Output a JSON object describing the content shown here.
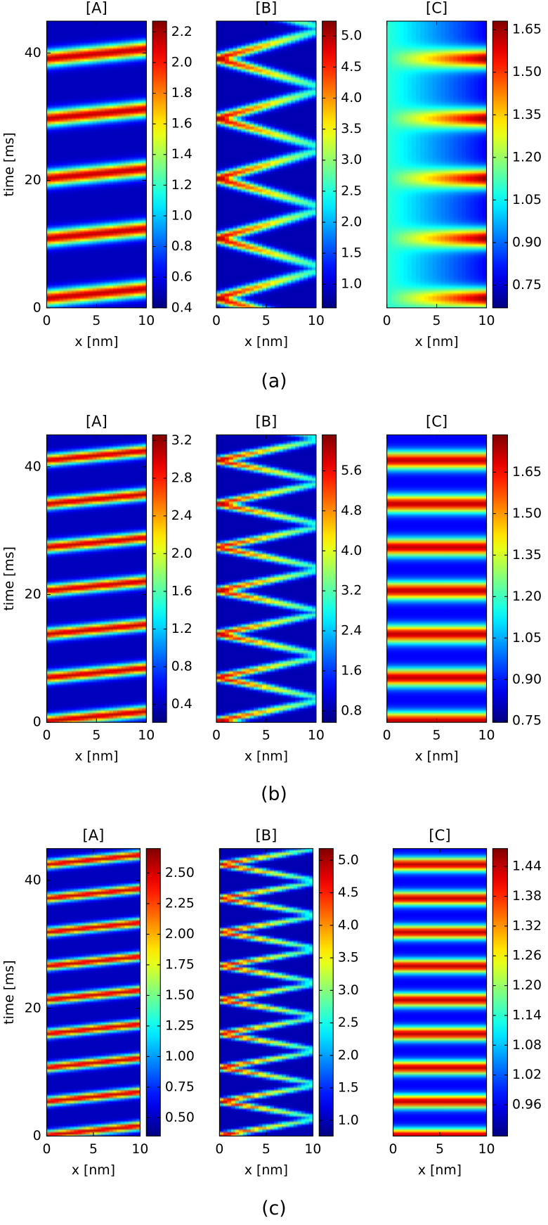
{
  "captions": [
    "(a)",
    "(b)",
    "(c)"
  ],
  "chart_data": [
    {
      "type": "heatmap",
      "title": "[A]",
      "xlabel": "x [nm]",
      "ylabel": "time [ms]",
      "xlim": [
        0,
        10
      ],
      "xticks": [
        0,
        5,
        10
      ],
      "ylim": [
        0,
        45
      ],
      "yticks": [
        0,
        20,
        40
      ],
      "colorbar": {
        "clim": [
          0.4,
          2.27
        ],
        "ticks": [
          0.4,
          0.6,
          0.8,
          {
            "value": 1,
            "label": "1.0"
          },
          1.2,
          1.4,
          1.6,
          1.8,
          {
            "value": 2,
            "label": "2.0"
          },
          2.2
        ]
      }
    },
    {
      "type": "heatmap",
      "title": "[B]",
      "xlabel": "x [nm]",
      "xlim": [
        0,
        10
      ],
      "xticks": [
        0,
        5,
        10
      ],
      "ylim": [
        0,
        45
      ],
      "colorbar": {
        "clim": [
          0.62,
          5.24
        ],
        "ticks": [
          {
            "value": 1,
            "label": "1.0"
          },
          1.5,
          {
            "value": 2,
            "label": "2.0"
          },
          2.5,
          {
            "value": 3,
            "label": "3.0"
          },
          3.5,
          {
            "value": 4,
            "label": "4.0"
          },
          4.5,
          {
            "value": 5,
            "label": "5.0"
          }
        ]
      }
    },
    {
      "type": "heatmap",
      "title": "[C]",
      "xlabel": "x [nm]",
      "xlim": [
        0,
        10
      ],
      "xticks": [
        0,
        5,
        10
      ],
      "ylim": [
        0,
        45
      ],
      "colorbar": {
        "clim": [
          0.67,
          1.68
        ],
        "ticks": [
          0.75,
          {
            "value": 0.9,
            "label": "0.90"
          },
          1.05,
          {
            "value": 1.2,
            "label": "1.20"
          },
          1.35,
          {
            "value": 1.5,
            "label": "1.50"
          },
          1.65
        ]
      }
    },
    {
      "type": "heatmap",
      "title": "[A]",
      "xlabel": "x [nm]",
      "ylabel": "time [ms]",
      "xlim": [
        0,
        10
      ],
      "xticks": [
        0,
        5,
        10
      ],
      "ylim": [
        0,
        45
      ],
      "yticks": [
        0,
        20,
        40
      ],
      "colorbar": {
        "clim": [
          0.21,
          3.26
        ],
        "ticks": [
          0.4,
          0.8,
          1.2,
          1.6,
          {
            "value": 2,
            "label": "2.0"
          },
          2.4,
          2.8,
          3.2
        ]
      }
    },
    {
      "type": "heatmap",
      "title": "[B]",
      "xlabel": "x [nm]",
      "xlim": [
        0,
        10
      ],
      "xticks": [
        0,
        5,
        10
      ],
      "ylim": [
        0,
        45
      ],
      "colorbar": {
        "clim": [
          0.57,
          6.32
        ],
        "ticks": [
          0.8,
          1.6,
          2.4,
          3.2,
          {
            "value": 4,
            "label": "4.0"
          },
          4.8,
          5.6
        ]
      }
    },
    {
      "type": "heatmap",
      "title": "[C]",
      "xlabel": "x [nm]",
      "xlim": [
        0,
        10
      ],
      "xticks": [
        0,
        5,
        10
      ],
      "ylim": [
        0,
        45
      ],
      "colorbar": {
        "clim": [
          0.745,
          1.785
        ],
        "ticks": [
          0.75,
          {
            "value": 0.9,
            "label": "0.90"
          },
          1.05,
          {
            "value": 1.2,
            "label": "1.20"
          },
          1.35,
          {
            "value": 1.5,
            "label": "1.50"
          },
          1.65
        ]
      }
    },
    {
      "type": "heatmap",
      "title": "[A]",
      "xlabel": "x [nm]",
      "ylabel": "time [ms]",
      "xlim": [
        0,
        10
      ],
      "xticks": [
        0,
        5,
        10
      ],
      "ylim": [
        0,
        45
      ],
      "yticks": [
        0,
        20,
        40
      ],
      "colorbar": {
        "clim": [
          0.35,
          2.7
        ],
        "ticks": [
          {
            "value": 0.5,
            "label": "0.50"
          },
          0.75,
          {
            "value": 1,
            "label": "1.00"
          },
          1.25,
          {
            "value": 1.5,
            "label": "1.50"
          },
          1.75,
          {
            "value": 2,
            "label": "2.00"
          },
          2.25,
          {
            "value": 2.5,
            "label": "2.50"
          }
        ]
      }
    },
    {
      "type": "heatmap",
      "title": "[B]",
      "xlabel": "x [nm]",
      "xlim": [
        0,
        10
      ],
      "xticks": [
        0,
        5,
        10
      ],
      "ylim": [
        0,
        45
      ],
      "colorbar": {
        "clim": [
          0.76,
          5.18
        ],
        "ticks": [
          {
            "value": 1,
            "label": "1.0"
          },
          1.5,
          {
            "value": 2,
            "label": "2.0"
          },
          2.5,
          {
            "value": 3,
            "label": "3.0"
          },
          3.5,
          {
            "value": 4,
            "label": "4.0"
          },
          4.5,
          {
            "value": 5,
            "label": "5.0"
          }
        ]
      }
    },
    {
      "type": "heatmap",
      "title": "[C]",
      "xlabel": "x [nm]",
      "xlim": [
        0,
        10
      ],
      "xticks": [
        0,
        5,
        10
      ],
      "ylim": [
        0,
        45
      ],
      "colorbar": {
        "clim": [
          0.897,
          1.476
        ],
        "ticks": [
          0.96,
          1.02,
          1.08,
          1.14,
          {
            "value": 1.2,
            "label": "1.20"
          },
          1.26,
          1.32,
          1.38,
          1.44
        ]
      }
    }
  ]
}
